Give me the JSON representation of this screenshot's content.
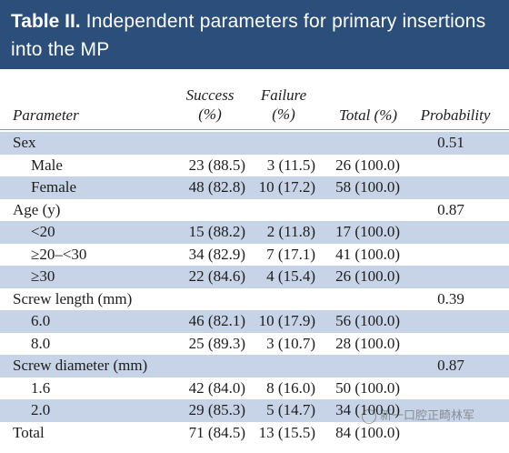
{
  "table": {
    "title_bold": "Table II.",
    "title_rest": " Independent parameters for primary insertions into the MP",
    "headers": {
      "parameter": "Parameter",
      "success_line1": "Success",
      "success_line2": "(%)",
      "failure_line1": "Failure",
      "failure_line2": "(%)",
      "total": "Total (%)",
      "probability": "Probability"
    },
    "rows": [
      {
        "label": "Sex",
        "success": "",
        "failure": "",
        "total": "",
        "probability": "0.51",
        "sub": false,
        "shade": true
      },
      {
        "label": "Male",
        "success": "23 (88.5)",
        "failure": "3 (11.5)",
        "total": "26 (100.0)",
        "probability": "",
        "sub": true,
        "shade": false
      },
      {
        "label": "Female",
        "success": "48 (82.8)",
        "failure": "10 (17.2)",
        "total": "58 (100.0)",
        "probability": "",
        "sub": true,
        "shade": true
      },
      {
        "label": "Age (y)",
        "success": "",
        "failure": "",
        "total": "",
        "probability": "0.87",
        "sub": false,
        "shade": false
      },
      {
        "label": "<20",
        "success": "15 (88.2)",
        "failure": "2 (11.8)",
        "total": "17 (100.0)",
        "probability": "",
        "sub": true,
        "shade": true
      },
      {
        "label": "≥20–<30",
        "success": "34 (82.9)",
        "failure": "7 (17.1)",
        "total": "41 (100.0)",
        "probability": "",
        "sub": true,
        "shade": false
      },
      {
        "label": "≥30",
        "success": "22 (84.6)",
        "failure": "4 (15.4)",
        "total": "26 (100.0)",
        "probability": "",
        "sub": true,
        "shade": true
      },
      {
        "label": "Screw length (mm)",
        "success": "",
        "failure": "",
        "total": "",
        "probability": "0.39",
        "sub": false,
        "shade": false
      },
      {
        "label": "6.0",
        "success": "46 (82.1)",
        "failure": "10 (17.9)",
        "total": "56 (100.0)",
        "probability": "",
        "sub": true,
        "shade": true
      },
      {
        "label": "8.0",
        "success": "25 (89.3)",
        "failure": "3 (10.7)",
        "total": "28 (100.0)",
        "probability": "",
        "sub": true,
        "shade": false
      },
      {
        "label": "Screw diameter (mm)",
        "success": "",
        "failure": "",
        "total": "",
        "probability": "0.87",
        "sub": false,
        "shade": true
      },
      {
        "label": "1.6",
        "success": "42 (84.0)",
        "failure": "8 (16.0)",
        "total": "50 (100.0)",
        "probability": "",
        "sub": true,
        "shade": false
      },
      {
        "label": "2.0",
        "success": "29 (85.3)",
        "failure": "5 (14.7)",
        "total": "34 (100.0)",
        "probability": "",
        "sub": true,
        "shade": true
      },
      {
        "label": "Total",
        "success": "71 (84.5)",
        "failure": "13 (15.5)",
        "total": "84 (100.0)",
        "probability": "",
        "sub": false,
        "shade": false
      }
    ]
  },
  "watermark": {
    "text": "新一口腔正畸林军"
  },
  "colors": {
    "header_bg": "#2b4f7a",
    "row_shade": "#c7d3e6"
  }
}
